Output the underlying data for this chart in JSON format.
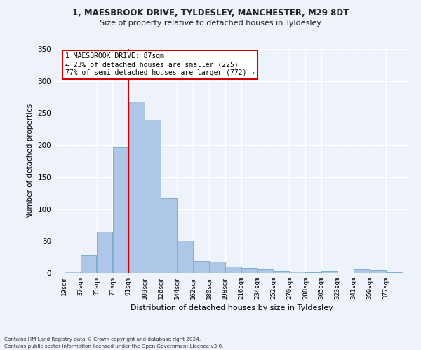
{
  "title1": "1, MAESBROOK DRIVE, TYLDESLEY, MANCHESTER, M29 8DT",
  "title2": "Size of property relative to detached houses in Tyldesley",
  "xlabel": "Distribution of detached houses by size in Tyldesley",
  "ylabel": "Number of detached properties",
  "categories": [
    "19sqm",
    "37sqm",
    "55sqm",
    "73sqm",
    "91sqm",
    "109sqm",
    "126sqm",
    "144sqm",
    "162sqm",
    "180sqm",
    "198sqm",
    "216sqm",
    "234sqm",
    "252sqm",
    "270sqm",
    "288sqm",
    "305sqm",
    "323sqm",
    "341sqm",
    "359sqm",
    "377sqm"
  ],
  "values": [
    2,
    27,
    65,
    197,
    268,
    240,
    117,
    50,
    19,
    18,
    10,
    8,
    5,
    3,
    2,
    1,
    3,
    0,
    5,
    4,
    1
  ],
  "bar_color": "#aec6e8",
  "bar_edge_color": "#7bafd4",
  "annotation_text": "1 MAESBROOK DRIVE: 87sqm\n← 23% of detached houses are smaller (225)\n77% of semi-detached houses are larger (772) →",
  "annotation_box_color": "#ffffff",
  "annotation_box_edge": "#cc0000",
  "vline_color": "#cc0000",
  "footer1": "Contains HM Land Registry data © Crown copyright and database right 2024.",
  "footer2": "Contains public sector information licensed under the Open Government Licence v3.0.",
  "bg_color": "#eef2fa",
  "grid_color": "#ffffff",
  "ylim": [
    0,
    350
  ],
  "bin_width": 18,
  "vline_pos": 91
}
